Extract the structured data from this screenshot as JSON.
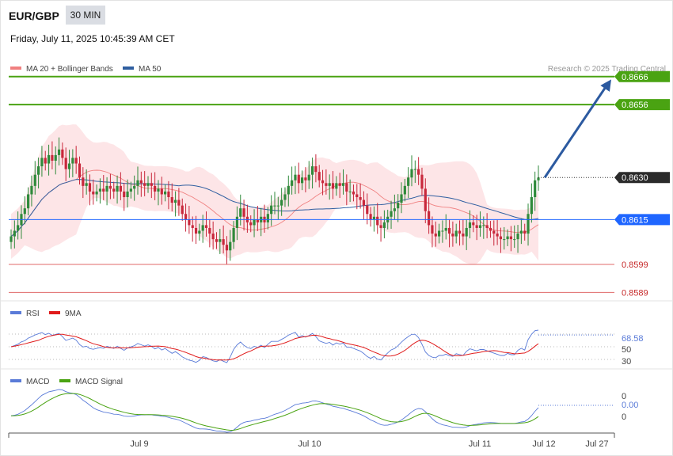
{
  "header": {
    "symbol": "EUR/GBP",
    "timeframe": "30 MIN",
    "datetime": "Friday, July 11, 2025 10:45:39 AM CET",
    "credit": "Research © 2025 Trading Central"
  },
  "colors": {
    "ma20": "#f08080",
    "ma50": "#2f5ea0",
    "bollinger_fill": "#fde2e4",
    "candle_up": "#2f8a3b",
    "candle_down": "#c8283c",
    "resistance": "#4aa312",
    "support": "#e06a6a",
    "pivot": "#1f66ff",
    "current": "#333333",
    "arrow": "#2c5aa0",
    "rsi": "#5a7bd8",
    "rsi_ma": "#e01b1b",
    "macd": "#5a7bd8",
    "macd_signal": "#4aa312"
  },
  "chart_data": [
    {
      "type": "candlestick",
      "legend": [
        "MA 20 + Bollinger Bands",
        "MA 50"
      ],
      "legend_placement": "top-left",
      "ylim": [
        0.8586,
        0.8673
      ],
      "x_ticks": [
        "Jul 9",
        "Jul 10",
        "Jul 11",
        "Jul 12",
        "Jul 27"
      ],
      "levels": [
        {
          "value": 0.8666,
          "label": "0.8666",
          "kind": "resistance"
        },
        {
          "value": 0.8656,
          "label": "0.8656",
          "kind": "resistance"
        },
        {
          "value": 0.863,
          "label": "0.8630",
          "kind": "current"
        },
        {
          "value": 0.8615,
          "label": "0.8615",
          "kind": "pivot"
        },
        {
          "value": 0.8599,
          "label": "0.8599",
          "kind": "support"
        },
        {
          "value": 0.8589,
          "label": "0.8589",
          "kind": "support"
        }
      ],
      "arrow": {
        "from": 0.863,
        "to": 0.8665
      },
      "closes": [
        0.8609,
        0.8611,
        0.8613,
        0.8617,
        0.8619,
        0.8624,
        0.8627,
        0.8631,
        0.8634,
        0.8637,
        0.8635,
        0.8638,
        0.8636,
        0.8638,
        0.864,
        0.8637,
        0.8633,
        0.8635,
        0.8637,
        0.8635,
        0.863,
        0.8627,
        0.8628,
        0.8625,
        0.8624,
        0.8625,
        0.8626,
        0.8625,
        0.8627,
        0.8626,
        0.8625,
        0.8627,
        0.8625,
        0.8623,
        0.8625,
        0.8626,
        0.8627,
        0.8629,
        0.8628,
        0.8627,
        0.8628,
        0.8627,
        0.8625,
        0.8626,
        0.8624,
        0.8625,
        0.8623,
        0.8621,
        0.8622,
        0.862,
        0.8617,
        0.8615,
        0.8613,
        0.8612,
        0.861,
        0.8611,
        0.8613,
        0.8612,
        0.861,
        0.8608,
        0.8607,
        0.8608,
        0.8606,
        0.8604,
        0.8607,
        0.8612,
        0.8616,
        0.8619,
        0.8616,
        0.8614,
        0.8613,
        0.8615,
        0.8614,
        0.8616,
        0.8614,
        0.8617,
        0.862,
        0.862,
        0.862,
        0.8622,
        0.8624,
        0.8627,
        0.8629,
        0.8631,
        0.8628,
        0.863,
        0.8629,
        0.8631,
        0.8634,
        0.8632,
        0.8629,
        0.8628,
        0.8627,
        0.8628,
        0.8626,
        0.8628,
        0.8627,
        0.8628,
        0.8625,
        0.8625,
        0.8624,
        0.8623,
        0.8622,
        0.862,
        0.8617,
        0.8615,
        0.8616,
        0.8613,
        0.8612,
        0.8614,
        0.8616,
        0.8618,
        0.8619,
        0.8621,
        0.8624,
        0.8627,
        0.863,
        0.8633,
        0.8633,
        0.8631,
        0.8626,
        0.8618,
        0.8613,
        0.861,
        0.8609,
        0.8611,
        0.8611,
        0.8612,
        0.861,
        0.8609,
        0.8611,
        0.861,
        0.8609,
        0.8612,
        0.8614,
        0.8613,
        0.8612,
        0.8613,
        0.8613,
        0.8612,
        0.8611,
        0.861,
        0.8609,
        0.8608,
        0.8608,
        0.8609,
        0.8608,
        0.8608,
        0.861,
        0.8611,
        0.861,
        0.8617,
        0.8623,
        0.8629,
        0.863
      ]
    },
    {
      "type": "line",
      "legend": [
        "RSI",
        "9MA"
      ],
      "legend_placement": "top-left",
      "ylim": [
        20,
        100
      ],
      "y_ticks": [
        "50",
        "30"
      ],
      "last_value": "68.58",
      "reference_levels": [
        70,
        50,
        30
      ]
    },
    {
      "type": "line",
      "legend": [
        "MACD",
        "MACD Signal"
      ],
      "legend_placement": "top-left",
      "y_ticks": [
        "0",
        "0.00",
        "0"
      ]
    }
  ]
}
